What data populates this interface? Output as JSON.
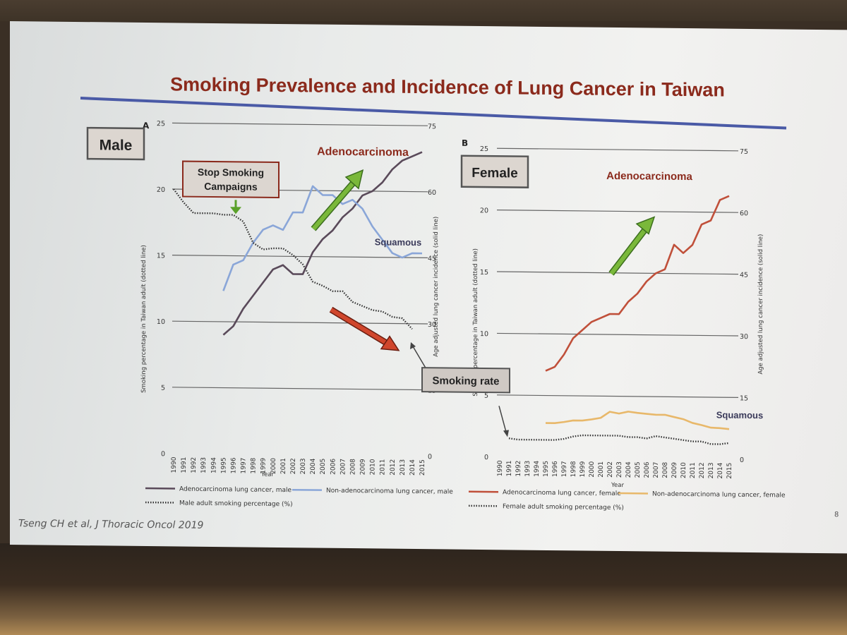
{
  "slide": {
    "title": "Smoking Prevalence and Incidence of Lung Cancer in Taiwan",
    "citation": "Tseng CH et al, J Thoracic Oncol 2019",
    "page_number": "8"
  },
  "chart_data": [
    {
      "type": "line",
      "panel_letter": "A",
      "panel_label": "Male",
      "xlabel": "Year",
      "ylabel_left": "Smoking percentage in Taiwan adult (dotted line)",
      "ylabel_right": "Age adjusted lung cancer incidence (solid line)",
      "ylim_left": [
        0,
        25
      ],
      "ylim_right": [
        0,
        75
      ],
      "yticks_left": [
        "0",
        "5",
        "10",
        "15",
        "20",
        "25"
      ],
      "yticks_right": [
        "0",
        "15",
        "30",
        "45",
        "60",
        "75"
      ],
      "x": [
        "1990",
        "1991",
        "1992",
        "1993",
        "1994",
        "1995",
        "1996",
        "1997",
        "1998",
        "1999",
        "2000",
        "2001",
        "2002",
        "2003",
        "2004",
        "2005",
        "2006",
        "2007",
        "2008",
        "2009",
        "2010",
        "2011",
        "2012",
        "2013",
        "2014",
        "2015"
      ],
      "series": [
        {
          "name": "Adenocarcinoma lung cancer, male",
          "axis": "right",
          "color": "#5a4a5a",
          "style": "solid",
          "values": [
            null,
            null,
            null,
            null,
            null,
            27,
            29,
            33,
            36,
            39,
            42,
            43,
            41,
            41,
            46,
            49,
            51,
            54,
            56,
            59,
            60,
            62,
            65,
            67,
            68,
            69
          ]
        },
        {
          "name": "Non-adenocarcinoma lung cancer, male",
          "axis": "right",
          "color": "#8aa6d8",
          "style": "solid",
          "values": [
            null,
            null,
            null,
            null,
            null,
            37,
            43,
            44,
            48,
            51,
            52,
            51,
            55,
            55,
            61,
            59,
            59,
            57,
            58,
            56,
            52,
            49,
            46,
            45,
            46,
            46
          ]
        },
        {
          "name": "Male adult smoking percentage (%)",
          "axis": "left",
          "color": "#333333",
          "style": "dotted",
          "values": [
            20.0,
            19.0,
            18.2,
            18.2,
            18.2,
            18.1,
            18.1,
            17.6,
            16.0,
            15.5,
            15.6,
            15.6,
            15.1,
            14.4,
            13.1,
            12.8,
            12.4,
            12.4,
            11.6,
            11.3,
            11.0,
            10.9,
            10.5,
            10.4,
            9.6,
            null
          ]
        }
      ],
      "annotations": [
        "Adenocarcinoma",
        "Squamous",
        "Stop Smoking Campaigns"
      ]
    },
    {
      "type": "line",
      "panel_letter": "B",
      "panel_label": "Female",
      "xlabel": "Year",
      "ylabel_left": "Smoking percentage in Taiwan adult (dotted line)",
      "ylabel_right": "Age adjusted lung cancer incidence (solid line)",
      "ylim_left": [
        0,
        25
      ],
      "ylim_right": [
        0,
        75
      ],
      "yticks_left": [
        "0",
        "5",
        "10",
        "15",
        "20",
        "25"
      ],
      "yticks_right": [
        "0",
        "15",
        "30",
        "45",
        "60",
        "75"
      ],
      "x": [
        "1990",
        "1991",
        "1992",
        "1993",
        "1994",
        "1995",
        "1996",
        "1997",
        "1998",
        "1999",
        "2000",
        "2001",
        "2002",
        "2003",
        "2004",
        "2005",
        "2006",
        "2007",
        "2008",
        "2009",
        "2010",
        "2011",
        "2012",
        "2013",
        "2014",
        "2015"
      ],
      "series": [
        {
          "name": "Adenocarcinoma lung cancer, female",
          "axis": "right",
          "color": "#c0503a",
          "style": "solid",
          "values": [
            null,
            null,
            null,
            null,
            null,
            21,
            22,
            25,
            29,
            31,
            33,
            34,
            35,
            35,
            38,
            40,
            43,
            45,
            46,
            52,
            50,
            52,
            57,
            58,
            63,
            64
          ]
        },
        {
          "name": "Non-adenocarcinoma lung cancer, female",
          "axis": "right",
          "color": "#e8b86a",
          "style": "solid",
          "values": [
            null,
            null,
            null,
            null,
            null,
            8.3,
            8.3,
            8.6,
            9.0,
            9.0,
            9.3,
            9.7,
            11.2,
            10.8,
            11.3,
            11.0,
            10.8,
            10.6,
            10.6,
            10.1,
            9.6,
            8.7,
            8.2,
            7.6,
            7.5,
            7.3
          ]
        },
        {
          "name": "Female adult smoking percentage (%)",
          "axis": "left",
          "color": "#333333",
          "style": "dotted",
          "values": [
            null,
            1.5,
            1.4,
            1.4,
            1.4,
            1.4,
            1.4,
            1.5,
            1.7,
            1.8,
            1.8,
            1.8,
            1.8,
            1.8,
            1.7,
            1.7,
            1.6,
            1.8,
            1.7,
            1.6,
            1.5,
            1.4,
            1.4,
            1.2,
            1.2,
            1.3
          ]
        }
      ],
      "annotations": [
        "Adenocarcinoma",
        "Squamous"
      ]
    }
  ],
  "shared": {
    "smoking_rate_label": "Smoking rate"
  }
}
